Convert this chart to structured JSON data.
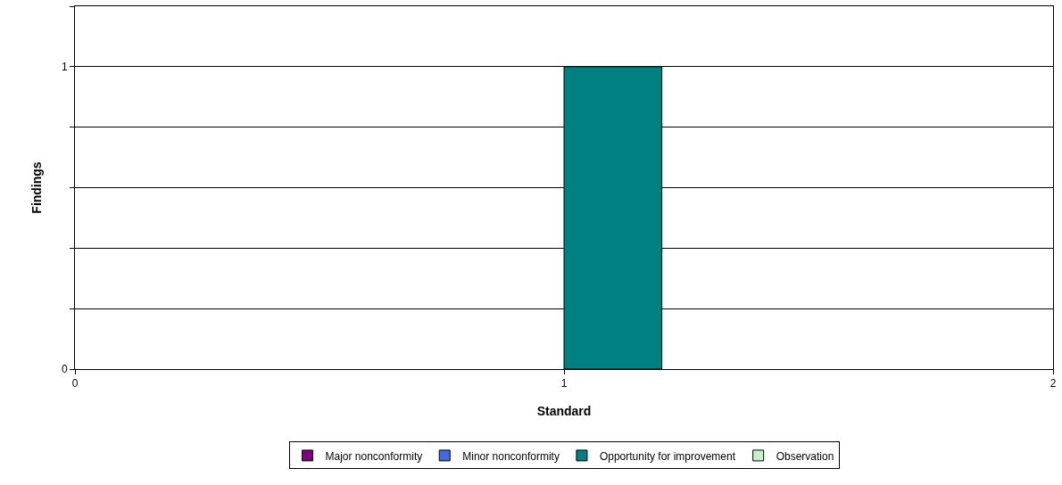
{
  "chart_data": {
    "type": "bar",
    "xlabel": "Standard",
    "ylabel": "Findings",
    "x": [
      1.1
    ],
    "series": [
      {
        "name": "Major nonconformity",
        "color": "#800080",
        "values": [
          null
        ]
      },
      {
        "name": "Minor nonconformity",
        "color": "#4169e1",
        "values": [
          null
        ]
      },
      {
        "name": "Opportunity for improvement",
        "color": "#008080",
        "values": [
          1
        ]
      },
      {
        "name": "Observation",
        "color": "#c8f0c8",
        "values": [
          null
        ]
      }
    ],
    "xlim": [
      0,
      2
    ],
    "xticks": [
      0,
      1,
      2
    ],
    "ylim": [
      0,
      1.2
    ],
    "yticks": [
      0,
      {
        "value": 0.2,
        "label": null
      },
      {
        "value": 0.4,
        "label": null
      },
      {
        "value": 0.6,
        "label": null
      },
      {
        "value": 0.8,
        "label": null
      },
      1,
      {
        "value": 1.2,
        "label": null
      }
    ],
    "grid": "y",
    "legend": "bottom"
  }
}
